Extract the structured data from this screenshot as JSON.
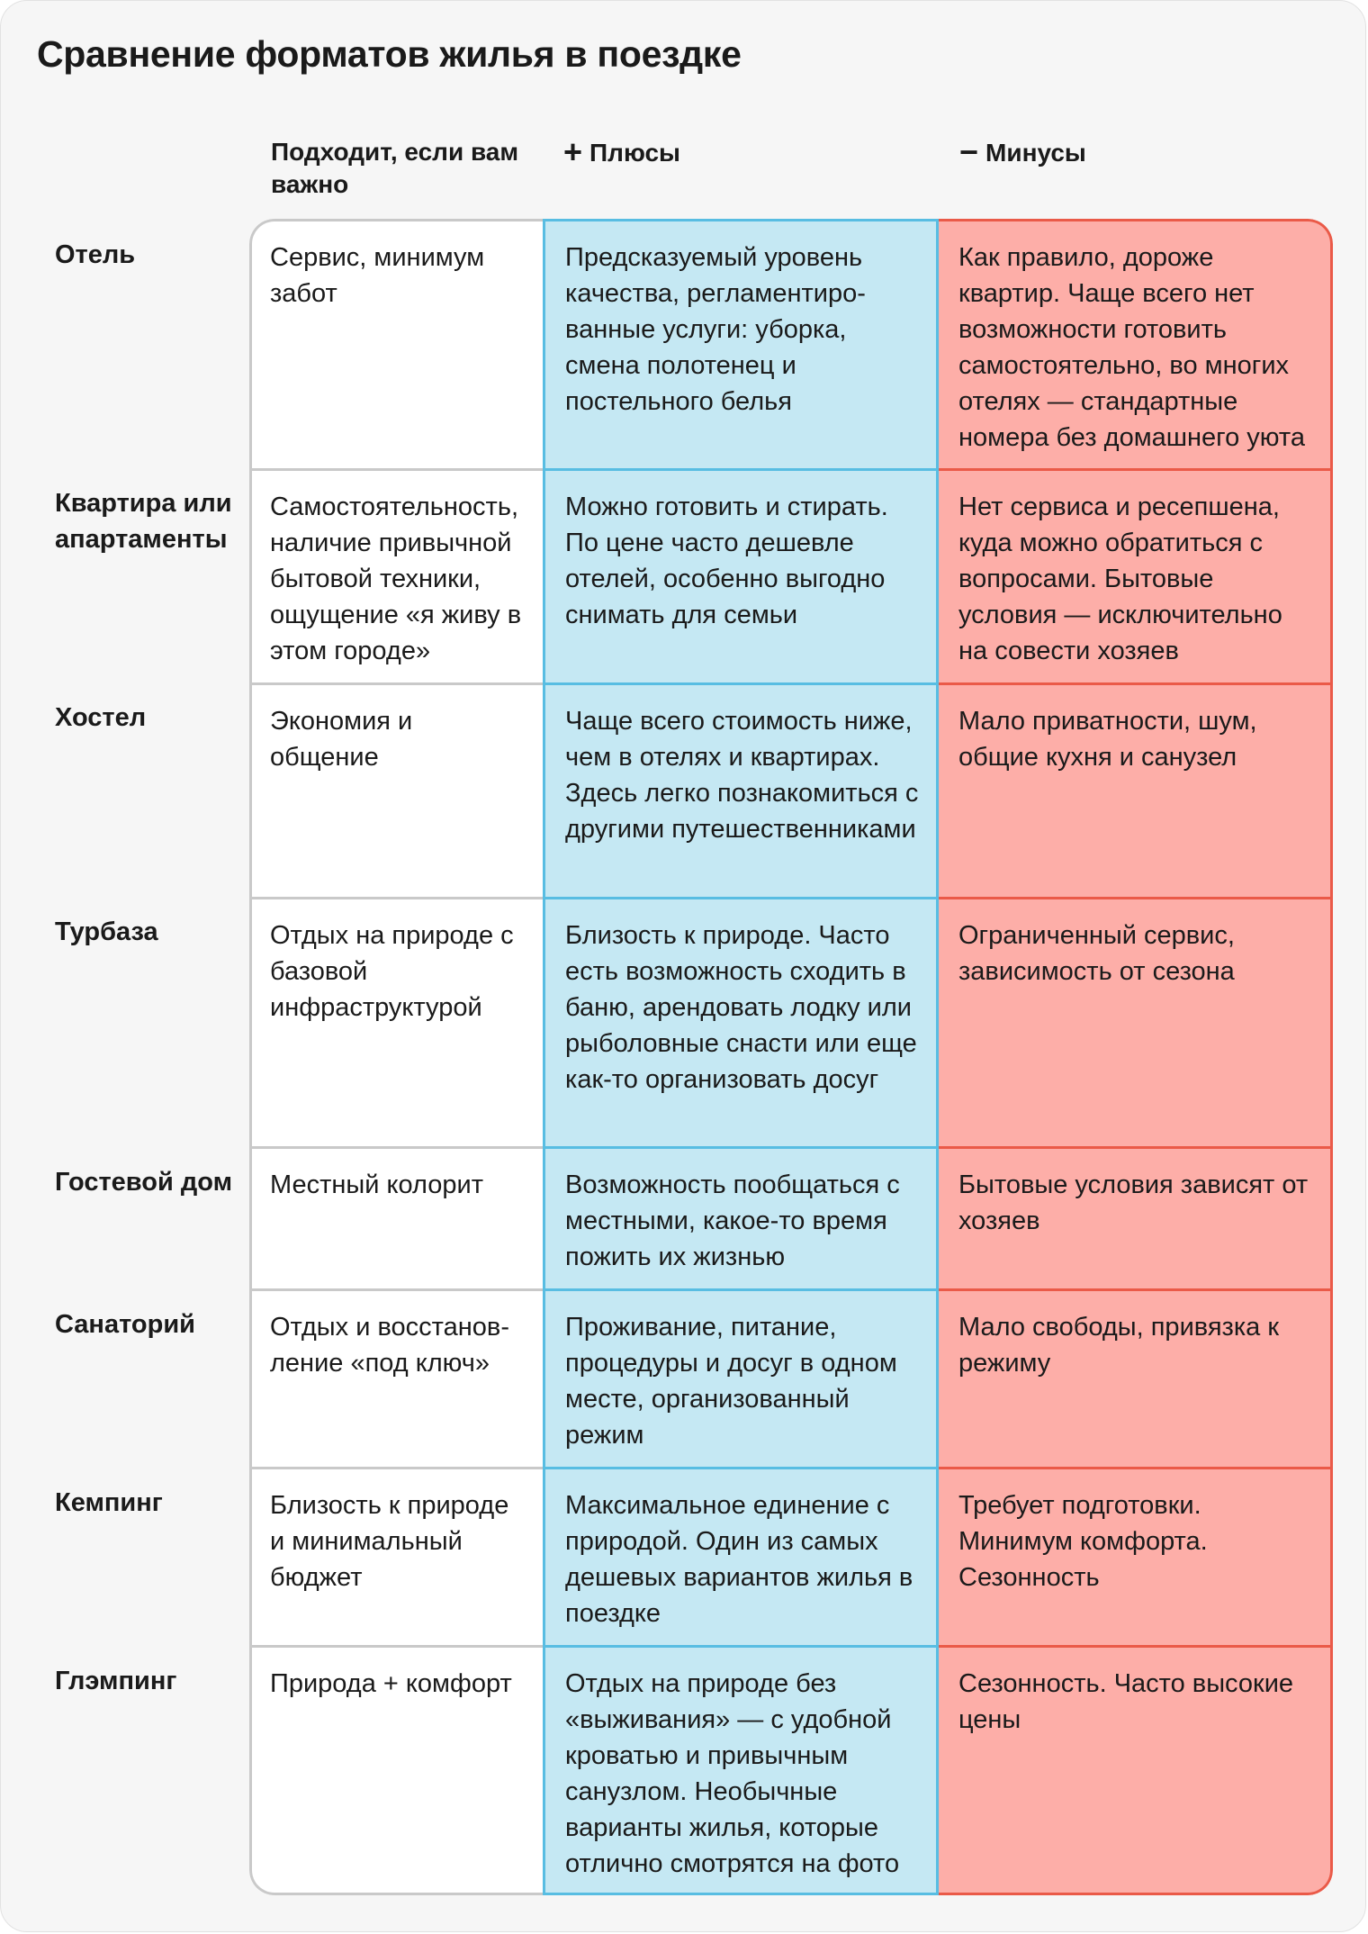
{
  "title": "Сравнение форматов жилья в поездке",
  "headers": {
    "suitable": "Подходит, если вам важно",
    "pros": "Плюсы",
    "cons": "Минусы",
    "pros_sign": "+",
    "cons_sign": "−"
  },
  "colors": {
    "pros_bg": "#c5e8f3",
    "pros_border": "#58bde2",
    "cons_bg": "#fdaea8",
    "cons_border": "#ea5a48",
    "suit_border": "#c9c9c9"
  },
  "rows": [
    {
      "label": "Отель",
      "suitable": "Сервис, минимум забот",
      "pros": "Предсказуемый уровень качества, регламентиро­ванные услуги: уборка, смена полотенец и постельного белья",
      "cons": "Как правило, дороже квартир. Чаще всего нет возмож­ности готовить самостоя­тельно, во многих отелях — стандартные номера без домашнего уюта"
    },
    {
      "label": "Квартира или апарта­менты",
      "suitable": "Самостоятельность, наличие привычной бытовой техники, ощущение «я живу в этом городе»",
      "pros": "Можно готовить и стирать. По цене часто дешевле отелей, особенно выгодно снимать для семьи",
      "cons": "Нет сервиса и ресепшена, куда можно обратиться с вопросами. Бытовые условия — исключительно на совести хозяев"
    },
    {
      "label": "Хостел",
      "suitable": "Экономия и общение",
      "pros": "Чаще всего стоимость ниже, чем в отелях и квартирах. Здесь легко познакомиться с другими путешественниками",
      "cons": "Мало приватности, шум, общие кухня и санузел"
    },
    {
      "label": "Турбаза",
      "suitable": "Отдых на природе с базовой инфраструктурой",
      "pros": "Близость к природе. Часто есть возможность сходить в баню, арендовать лодку или рыболовные снасти или еще как-то организо­вать досуг",
      "cons": "Ограниченный сервис, зависимость от сезона"
    },
    {
      "label": "Гостевой дом",
      "suitable": "Местный колорит",
      "pros": "Возможность пообщаться с местными, какое-то время пожить их жизнью",
      "cons": "Бытовые условия зависят от хозяев"
    },
    {
      "label": "Санаторий",
      "suitable": "Отдых и восстанов­ление «под ключ»",
      "pros": "Проживание, питание, процедуры и досуг в одном месте, организованный режим",
      "cons": "Мало свободы, привязка к режиму"
    },
    {
      "label": "Кемпинг",
      "suitable": "Близость к природе и минимальный бюджет",
      "pros": "Максимальное единение с природой. Один из самых дешевых вариантов жилья в поездке",
      "cons": "Требует подготовки. Минимум комфорта. Сезонность"
    },
    {
      "label": "Глэмпинг",
      "suitable": "Природа + комфорт",
      "pros": "Отдых на природе без «выживания» — с удобной кроватью и привычным санузлом. Необычные варианты жилья, которые отлично смотрятся на фото",
      "cons": "Сезонность. Часто высокие цены"
    }
  ]
}
